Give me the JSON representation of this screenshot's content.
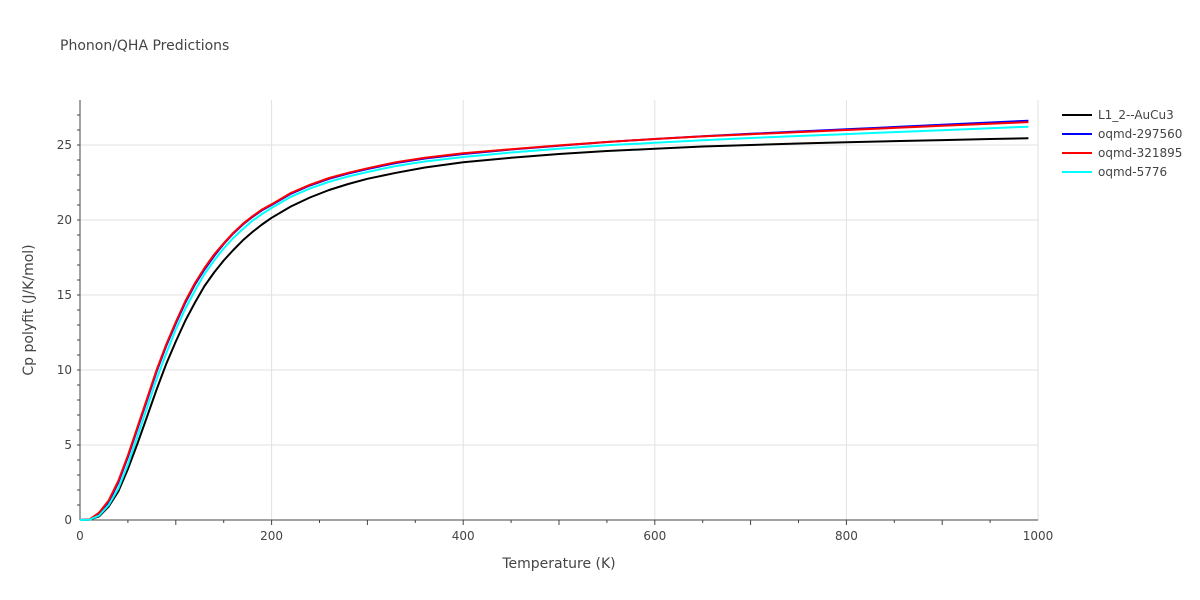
{
  "chart_data": {
    "type": "line",
    "title": "Phonon/QHA Predictions",
    "xlabel": "Temperature (K)",
    "ylabel": "Cp polyfit (J/K/mol)",
    "xlim": [
      0,
      1000
    ],
    "ylim": [
      0,
      28
    ],
    "xticks": [
      0,
      200,
      400,
      600,
      800,
      1000
    ],
    "yticks": [
      0,
      5,
      10,
      15,
      20,
      25
    ],
    "grid": true,
    "legend_position": "top-right",
    "x": [
      0,
      10,
      20,
      30,
      40,
      50,
      60,
      70,
      80,
      90,
      100,
      110,
      120,
      130,
      140,
      150,
      160,
      170,
      180,
      190,
      200,
      220,
      240,
      260,
      280,
      300,
      330,
      360,
      400,
      450,
      500,
      550,
      600,
      650,
      700,
      750,
      800,
      850,
      900,
      950,
      990
    ],
    "series": [
      {
        "name": "L1_2--AuCu3",
        "color": "#000000",
        "values": [
          0,
          0.02,
          0.25,
          0.9,
          1.9,
          3.4,
          5.1,
          6.9,
          8.7,
          10.4,
          11.9,
          13.3,
          14.5,
          15.6,
          16.5,
          17.3,
          18.0,
          18.65,
          19.2,
          19.7,
          20.15,
          20.9,
          21.5,
          22.0,
          22.4,
          22.75,
          23.15,
          23.5,
          23.85,
          24.15,
          24.4,
          24.6,
          24.75,
          24.9,
          25.0,
          25.1,
          25.18,
          25.26,
          25.33,
          25.4,
          25.45
        ]
      },
      {
        "name": "oqmd-297560",
        "color": "#0000ff",
        "values": [
          0,
          0.03,
          0.45,
          1.2,
          2.5,
          4.2,
          6.1,
          8.0,
          9.9,
          11.6,
          13.1,
          14.5,
          15.7,
          16.7,
          17.6,
          18.4,
          19.1,
          19.7,
          20.2,
          20.65,
          21.0,
          21.75,
          22.3,
          22.75,
          23.1,
          23.4,
          23.8,
          24.1,
          24.4,
          24.7,
          24.95,
          25.2,
          25.4,
          25.58,
          25.75,
          25.9,
          26.05,
          26.2,
          26.35,
          26.5,
          26.62
        ]
      },
      {
        "name": "oqmd-321895",
        "color": "#ff0000",
        "values": [
          0,
          0.04,
          0.5,
          1.3,
          2.6,
          4.3,
          6.2,
          8.1,
          10.0,
          11.7,
          13.2,
          14.6,
          15.8,
          16.8,
          17.7,
          18.45,
          19.15,
          19.75,
          20.25,
          20.7,
          21.05,
          21.8,
          22.35,
          22.8,
          23.15,
          23.45,
          23.85,
          24.15,
          24.45,
          24.72,
          24.97,
          25.2,
          25.4,
          25.57,
          25.72,
          25.86,
          26.0,
          26.14,
          26.28,
          26.42,
          26.53
        ]
      },
      {
        "name": "oqmd-5776",
        "color": "#00ffff",
        "values": [
          0,
          0.02,
          0.3,
          1.0,
          2.1,
          3.7,
          5.6,
          7.5,
          9.4,
          11.1,
          12.7,
          14.1,
          15.3,
          16.4,
          17.3,
          18.1,
          18.8,
          19.4,
          19.95,
          20.4,
          20.8,
          21.55,
          22.1,
          22.55,
          22.9,
          23.2,
          23.6,
          23.9,
          24.2,
          24.5,
          24.75,
          24.98,
          25.15,
          25.32,
          25.47,
          25.6,
          25.73,
          25.86,
          25.99,
          26.12,
          26.22
        ]
      }
    ]
  }
}
